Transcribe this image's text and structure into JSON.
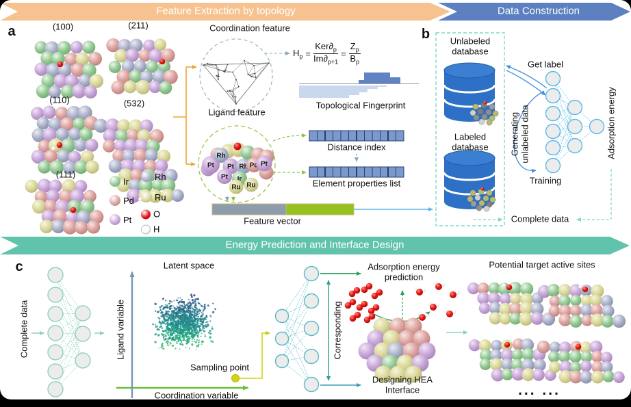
{
  "banners": {
    "feature_extraction": "Feature Extraction by topology",
    "data_construction": "Data Construction",
    "energy_prediction": "Energy Prediction and Interface Design"
  },
  "panel_a": {
    "label": "a",
    "facets": [
      "(100)",
      "(211)",
      "(110)",
      "(532)",
      "(111)"
    ],
    "coordination_feature": "Coordination feature",
    "ligand_feature": "Ligand feature",
    "formula": {
      "h": "H",
      "h_sub": "p",
      "eq1": "=",
      "num1": "Ker∂",
      "num1_sub": "p",
      "den1": "Im∂",
      "den1_sub": "p+1",
      "eq2": "=",
      "num2": "Z",
      "num2_sub": "p",
      "den2": "B",
      "den2_sub": "p"
    },
    "topological_fingerprint": "Topological Fingerprint",
    "distance_index": "Distance index",
    "element_properties": "Element properties list",
    "feature_vector": "Feature vector",
    "legend_col1": [
      {
        "symbol": "Ir",
        "color": "#93c893"
      },
      {
        "symbol": "Pd",
        "color": "#dca29e"
      },
      {
        "symbol": "Pt",
        "color": "#c8a6d8"
      }
    ],
    "legend_col2": [
      {
        "symbol": "Rh",
        "color": "#abb1c9"
      },
      {
        "symbol": "Ru",
        "color": "#d9d79a"
      },
      {
        "symbol": "O",
        "color": "#e01212"
      },
      {
        "symbol": "H",
        "color": "#ffffff"
      }
    ],
    "cluster_atoms": [
      "Pt",
      "Rh",
      "Pt",
      "Pt",
      "Rh",
      "Pd",
      "Pt",
      "Ir",
      "Ru",
      "Ru"
    ]
  },
  "panel_b": {
    "label": "b",
    "unlabeled_database": "Unlabeled database",
    "labeled_database": "Labeled database",
    "get_label": "Get label",
    "generating_unlabeled_data": "Generating unlabeled data",
    "training": "Training",
    "adsorption_energy": "Adsorption energy",
    "complete_data": "Complete data"
  },
  "panel_c": {
    "label": "c",
    "complete_data": "Complete data",
    "latent_space": "Latent space",
    "ligand_variable": "Ligand variable",
    "coordination_variable": "Coordination variable",
    "sampling_point": "Sampling point",
    "corresponding": "Corresponding",
    "adsorption_energy_prediction": "Adsorption energy prediction",
    "designing_hea_interface": "Designing HEA Interface",
    "potential_target_active_sites": "Potential target active sites",
    "ellipsis": "... ..."
  },
  "colors": {
    "banner_orange": "#f6c28f",
    "banner_blue": "#5c80c0",
    "banner_teal": "#62c3ad",
    "database_blue": "#2e70c5",
    "network_blue": "#5bb8e8",
    "network_teal": "#8fd0c0",
    "accent_orange": "#f0a431",
    "accent_green": "#8cc63f",
    "bar_blue": "#7b99cc",
    "fingerprint_light": "#c9d8ef",
    "fingerprint_dark": "#5f83c3",
    "vector_gray": "#8d9dab",
    "vector_green": "#97c11f",
    "sampling_yellow": "#d4d414",
    "oxygen_red": "#e01212"
  }
}
